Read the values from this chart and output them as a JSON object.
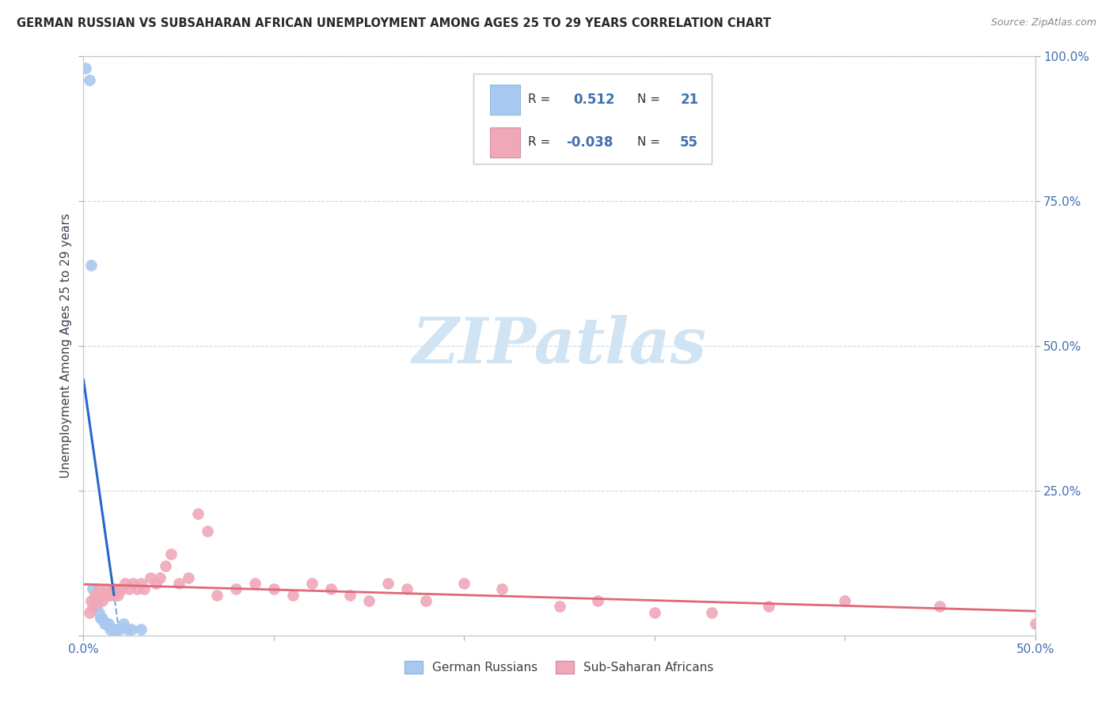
{
  "title": "GERMAN RUSSIAN VS SUBSAHARAN AFRICAN UNEMPLOYMENT AMONG AGES 25 TO 29 YEARS CORRELATION CHART",
  "source": "Source: ZipAtlas.com",
  "ylabel": "Unemployment Among Ages 25 to 29 years",
  "xlim": [
    0.0,
    0.5
  ],
  "ylim": [
    0.0,
    1.0
  ],
  "xticks": [
    0.0,
    0.1,
    0.2,
    0.3,
    0.4,
    0.5
  ],
  "xticklabels": [
    "0.0%",
    "",
    "",
    "",
    "",
    "50.0%"
  ],
  "yticks_left": [
    0.0,
    0.25,
    0.5,
    0.75,
    1.0
  ],
  "yticklabels_left": [
    "",
    "",
    "",
    "",
    ""
  ],
  "yticks_right": [
    0.25,
    0.5,
    0.75,
    1.0
  ],
  "yticklabels_right": [
    "25.0%",
    "50.0%",
    "75.0%",
    "100.0%"
  ],
  "legend_R1": "0.512",
  "legend_N1": "21",
  "legend_R2": "-0.038",
  "legend_N2": "55",
  "group1_label": "German Russians",
  "group2_label": "Sub-Saharan Africans",
  "group1_color": "#a8c8f0",
  "group2_color": "#f0a8b8",
  "regression1_color": "#2468cc",
  "regression2_color": "#e06878",
  "watermark_color": "#d0e4f4",
  "background_color": "#ffffff",
  "grid_color": "#c8d8e8",
  "tick_color": "#4070b0",
  "gr_x": [
    0.001,
    0.003,
    0.004,
    0.005,
    0.006,
    0.007,
    0.008,
    0.009,
    0.01,
    0.011,
    0.012,
    0.013,
    0.014,
    0.015,
    0.016,
    0.017,
    0.019,
    0.021,
    0.023,
    0.025,
    0.03
  ],
  "gr_y": [
    0.98,
    0.96,
    0.64,
    0.08,
    0.06,
    0.05,
    0.04,
    0.03,
    0.03,
    0.02,
    0.02,
    0.02,
    0.01,
    0.01,
    0.01,
    0.01,
    0.01,
    0.02,
    0.01,
    0.01,
    0.01
  ],
  "ssa_x": [
    0.003,
    0.004,
    0.005,
    0.006,
    0.007,
    0.008,
    0.009,
    0.01,
    0.011,
    0.012,
    0.013,
    0.014,
    0.015,
    0.016,
    0.017,
    0.018,
    0.019,
    0.02,
    0.022,
    0.024,
    0.026,
    0.028,
    0.03,
    0.032,
    0.035,
    0.038,
    0.04,
    0.043,
    0.046,
    0.05,
    0.055,
    0.06,
    0.065,
    0.07,
    0.08,
    0.09,
    0.1,
    0.11,
    0.12,
    0.13,
    0.14,
    0.15,
    0.16,
    0.17,
    0.18,
    0.2,
    0.22,
    0.25,
    0.27,
    0.3,
    0.33,
    0.36,
    0.4,
    0.45,
    0.5
  ],
  "ssa_y": [
    0.04,
    0.06,
    0.05,
    0.07,
    0.06,
    0.08,
    0.07,
    0.06,
    0.07,
    0.08,
    0.07,
    0.07,
    0.08,
    0.07,
    0.08,
    0.07,
    0.08,
    0.08,
    0.09,
    0.08,
    0.09,
    0.08,
    0.09,
    0.08,
    0.1,
    0.09,
    0.1,
    0.12,
    0.14,
    0.09,
    0.1,
    0.21,
    0.18,
    0.07,
    0.08,
    0.09,
    0.08,
    0.07,
    0.09,
    0.08,
    0.07,
    0.06,
    0.09,
    0.08,
    0.06,
    0.09,
    0.08,
    0.05,
    0.06,
    0.04,
    0.04,
    0.05,
    0.06,
    0.05,
    0.02
  ]
}
